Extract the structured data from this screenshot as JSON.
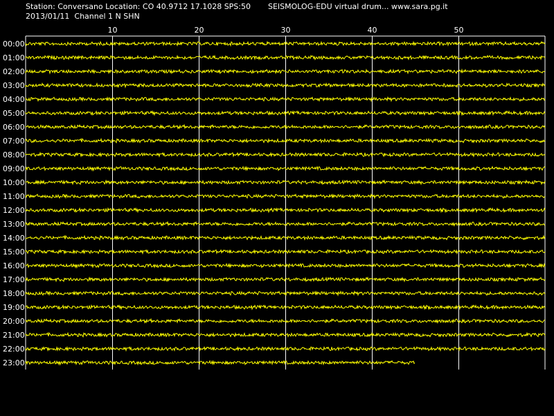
{
  "header": {
    "station_line": "Station: Conversano Location: CO 40.9712 17.1028 SPS:50",
    "date_channel_line": "2013/01/11  Channel 1 N SHN",
    "brand_line": "SEISMOLOG-EDU virtual drum... www.sara.pg.it"
  },
  "colors": {
    "background": "#000000",
    "trace": "#ffff00",
    "grid": "#ffffff",
    "text": "#ffffff"
  },
  "chart_data": {
    "type": "line",
    "title": "",
    "xlabel": "",
    "ylabel": "",
    "x_unit_note": "minutes past hour",
    "xlim": [
      0,
      60
    ],
    "x_ticks": [
      10,
      20,
      30,
      40,
      50
    ],
    "x_tick_labels": [
      "10",
      "20",
      "30",
      "40",
      "50"
    ],
    "rows": [
      "00:00",
      "01:00",
      "02:00",
      "03:00",
      "04:00",
      "05:00",
      "06:00",
      "07:00",
      "08:00",
      "09:00",
      "10:00",
      "11:00",
      "12:00",
      "13:00",
      "14:00",
      "15:00",
      "16:00",
      "17:00",
      "18:00",
      "19:00",
      "20:00",
      "21:00",
      "22:00",
      "23:00"
    ],
    "row_end_minute": [
      60,
      60,
      60,
      60,
      60,
      60,
      60,
      60,
      60,
      60,
      60,
      60,
      60,
      60,
      60,
      60,
      60,
      60,
      60,
      60,
      60,
      60,
      60,
      45
    ],
    "grid": true,
    "legend": "none"
  }
}
